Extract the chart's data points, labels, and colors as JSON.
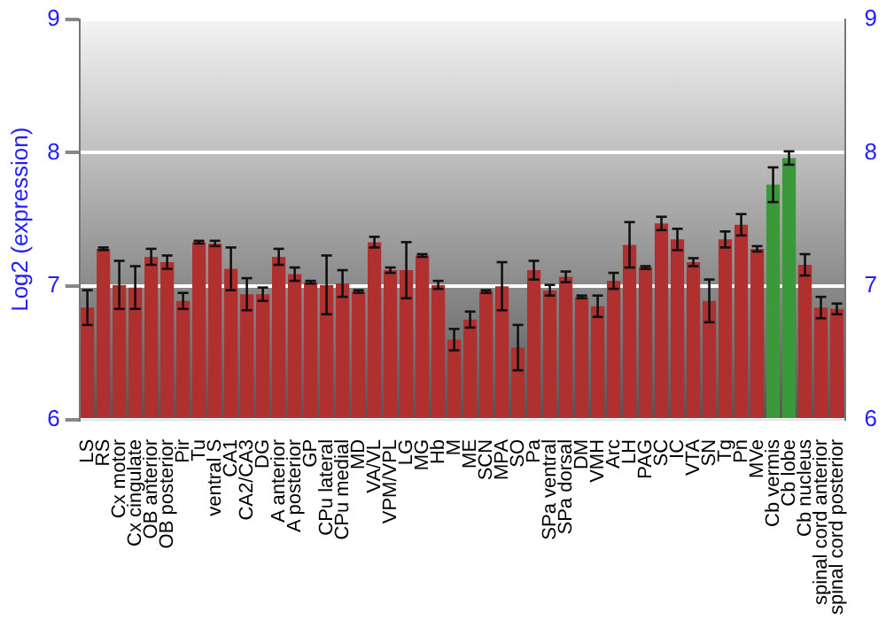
{
  "chart_data": {
    "type": "bar",
    "ylabel": "Log2 (expression)",
    "categories": [
      "LS",
      "RS",
      "Cx motor",
      "Cx cingulate",
      "OB anterior",
      "OB posterior",
      "Pir",
      "Tu",
      "ventral S",
      "CA1",
      "CA2/CA3",
      "DG",
      "A anterior",
      "A posterior",
      "GP",
      "CPu lateral",
      "CPu medial",
      "MD",
      "VA/VL",
      "VPM/VPL",
      "LG",
      "MG",
      "Hb",
      "M",
      "ME",
      "SCN",
      "MPA",
      "SO",
      "Pa",
      "SPa ventral",
      "SPa dorsal",
      "DM",
      "VMH",
      "Arc",
      "LH",
      "PAG",
      "SC",
      "IC",
      "VTA",
      "SN",
      "Tg",
      "Pn",
      "MVe",
      "Cb vermis",
      "Cb lobe",
      "Cb nucleus",
      "spinal cord anterior",
      "spinal cord posterior"
    ],
    "values": [
      6.84,
      7.28,
      7.01,
      6.99,
      7.22,
      7.18,
      6.89,
      7.33,
      7.32,
      7.13,
      6.94,
      6.94,
      7.22,
      7.09,
      7.03,
      7.01,
      7.02,
      6.96,
      7.33,
      7.12,
      7.12,
      7.23,
      7.01,
      6.6,
      6.75,
      6.96,
      7.0,
      6.54,
      7.12,
      6.97,
      7.07,
      6.92,
      6.85,
      7.04,
      7.31,
      7.14,
      7.47,
      7.35,
      7.18,
      6.89,
      7.35,
      7.46,
      7.28,
      7.76,
      7.96,
      7.16,
      6.84,
      6.83
    ],
    "errors": [
      0.13,
      0.01,
      0.18,
      0.16,
      0.06,
      0.05,
      0.06,
      0.01,
      0.02,
      0.16,
      0.12,
      0.05,
      0.06,
      0.05,
      0.01,
      0.22,
      0.1,
      0.01,
      0.04,
      0.02,
      0.21,
      0.01,
      0.03,
      0.08,
      0.06,
      0.01,
      0.18,
      0.17,
      0.07,
      0.04,
      0.04,
      0.01,
      0.08,
      0.06,
      0.17,
      0.01,
      0.05,
      0.08,
      0.03,
      0.16,
      0.06,
      0.08,
      0.02,
      0.13,
      0.05,
      0.08,
      0.08,
      0.04
    ],
    "colors": [
      "#b03030",
      "#b03030",
      "#b03030",
      "#b03030",
      "#b03030",
      "#b03030",
      "#b03030",
      "#b03030",
      "#b03030",
      "#b03030",
      "#b03030",
      "#b03030",
      "#b03030",
      "#b03030",
      "#b03030",
      "#b03030",
      "#b03030",
      "#b03030",
      "#b03030",
      "#b03030",
      "#b03030",
      "#b03030",
      "#b03030",
      "#b03030",
      "#b03030",
      "#b03030",
      "#b03030",
      "#b03030",
      "#b03030",
      "#b03030",
      "#b03030",
      "#b03030",
      "#b03030",
      "#b03030",
      "#b03030",
      "#b03030",
      "#b03030",
      "#b03030",
      "#b03030",
      "#b03030",
      "#b03030",
      "#b03030",
      "#b03030",
      "#3a9a3a",
      "#3a9a3a",
      "#b03030",
      "#b03030",
      "#b03030"
    ],
    "ylim": [
      6,
      9
    ],
    "yticks": [
      6,
      7,
      8,
      9
    ],
    "y2lim": [
      6,
      9
    ],
    "y2ticks": [
      6,
      7,
      8,
      9
    ],
    "grid": "y",
    "legend": false
  }
}
